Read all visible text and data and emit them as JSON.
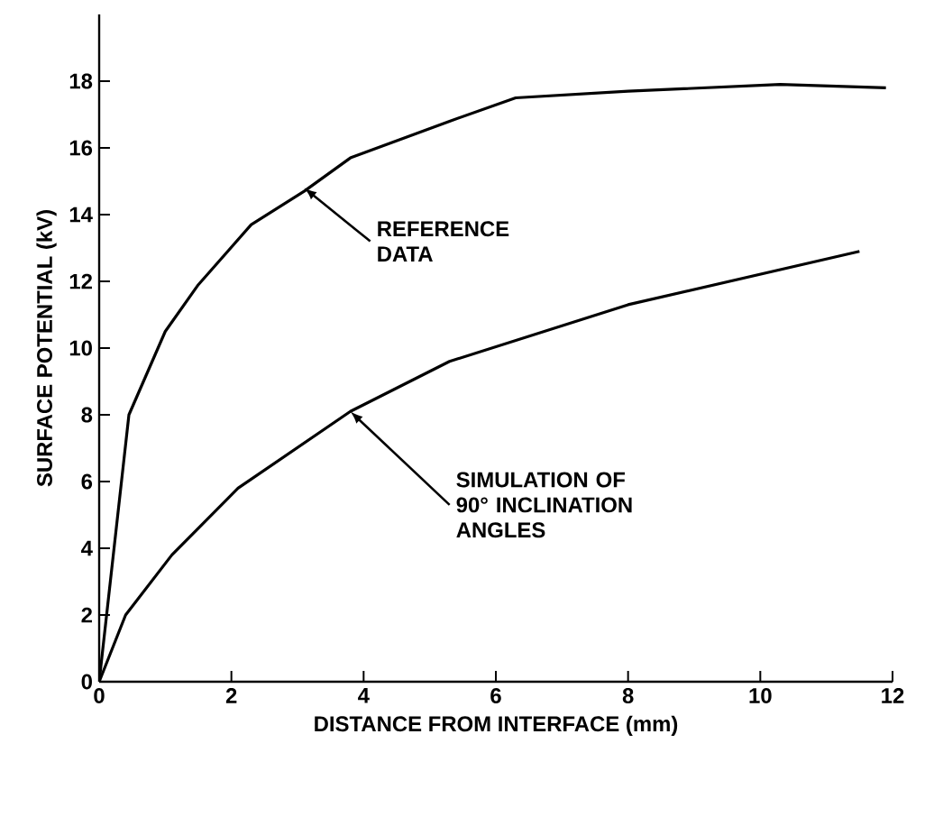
{
  "chart_data": {
    "type": "line",
    "xlabel": "DISTANCE FROM INTERFACE (mm)",
    "ylabel": "SURFACE POTENTIAL (kV)",
    "xlim": [
      0,
      12
    ],
    "ylim": [
      0,
      20
    ],
    "xticks": [
      0,
      2,
      4,
      6,
      8,
      10,
      12
    ],
    "yticks": [
      0,
      2,
      4,
      6,
      8,
      10,
      12,
      14,
      16,
      18
    ],
    "grid": false,
    "marker": "none",
    "line_style": "solid",
    "series": [
      {
        "color": "#000000",
        "x": [
          0,
          0.45,
          1.0,
          1.5,
          2.3,
          3.1,
          3.8,
          5.3,
          6.3,
          8.0,
          10.3,
          11.9
        ],
        "values": [
          0,
          8,
          10.5,
          11.9,
          13.7,
          14.7,
          15.7,
          16.8,
          17.5,
          17.7,
          17.9,
          17.8
        ]
      },
      {
        "color": "#000000",
        "x": [
          0,
          0.4,
          1.1,
          2.1,
          3.8,
          5.3,
          8.0,
          11.5
        ],
        "values": [
          0,
          2,
          3.8,
          5.8,
          8.1,
          9.6,
          11.3,
          12.9
        ]
      }
    ],
    "annotations": [
      {
        "text": "REFERENCE DATA",
        "x": 3.1,
        "y": 14.8
      },
      {
        "text": "SIMULATION OF 90° INCLINATION ANGLES",
        "x": 3.8,
        "y": 8.1
      }
    ]
  }
}
